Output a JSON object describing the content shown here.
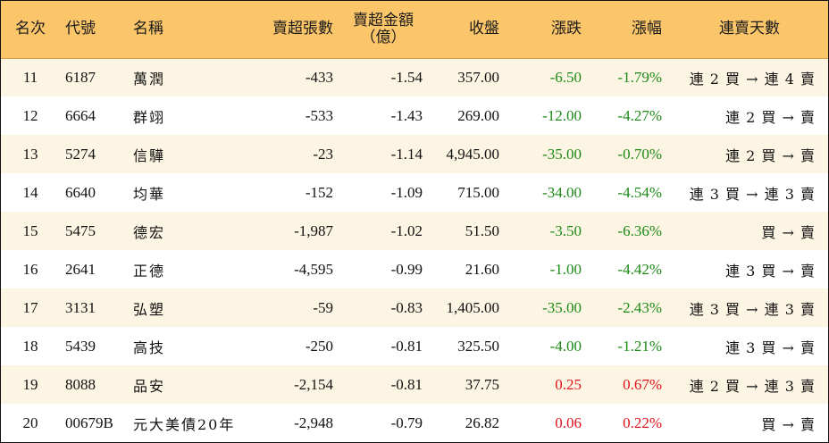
{
  "headers": {
    "rank": "名次",
    "code": "代號",
    "name": "名稱",
    "sell_lots": "賣超張數",
    "sell_amount_line1": "賣超金額",
    "sell_amount_line2": "（億）",
    "close": "收盤",
    "change": "漲跌",
    "change_pct": "漲幅",
    "streak": "連賣天數"
  },
  "rows": [
    {
      "rank": "11",
      "code": "6187",
      "name": "萬潤",
      "sell_lots": "-433",
      "sell_amount": "-1.54",
      "close": "357.00",
      "change": "-6.50",
      "change_pct": "-1.79%",
      "streak": "連 2 買 → 連 4 賣"
    },
    {
      "rank": "12",
      "code": "6664",
      "name": "群翊",
      "sell_lots": "-533",
      "sell_amount": "-1.43",
      "close": "269.00",
      "change": "-12.00",
      "change_pct": "-4.27%",
      "streak": "連 2 買 → 賣"
    },
    {
      "rank": "13",
      "code": "5274",
      "name": "信驊",
      "sell_lots": "-23",
      "sell_amount": "-1.14",
      "close": "4,945.00",
      "change": "-35.00",
      "change_pct": "-0.70%",
      "streak": "連 2 買 → 賣"
    },
    {
      "rank": "14",
      "code": "6640",
      "name": "均華",
      "sell_lots": "-152",
      "sell_amount": "-1.09",
      "close": "715.00",
      "change": "-34.00",
      "change_pct": "-4.54%",
      "streak": "連 3 買 → 連 3 賣"
    },
    {
      "rank": "15",
      "code": "5475",
      "name": "德宏",
      "sell_lots": "-1,987",
      "sell_amount": "-1.02",
      "close": "51.50",
      "change": "-3.50",
      "change_pct": "-6.36%",
      "streak": "買 → 賣"
    },
    {
      "rank": "16",
      "code": "2641",
      "name": "正德",
      "sell_lots": "-4,595",
      "sell_amount": "-0.99",
      "close": "21.60",
      "change": "-1.00",
      "change_pct": "-4.42%",
      "streak": "連 3 買 → 賣"
    },
    {
      "rank": "17",
      "code": "3131",
      "name": "弘塑",
      "sell_lots": "-59",
      "sell_amount": "-0.83",
      "close": "1,405.00",
      "change": "-35.00",
      "change_pct": "-2.43%",
      "streak": "連 3 買 → 連 3 賣"
    },
    {
      "rank": "18",
      "code": "5439",
      "name": "高技",
      "sell_lots": "-250",
      "sell_amount": "-0.81",
      "close": "325.50",
      "change": "-4.00",
      "change_pct": "-1.21%",
      "streak": "連 3 買 → 賣"
    },
    {
      "rank": "19",
      "code": "8088",
      "name": "品安",
      "sell_lots": "-2,154",
      "sell_amount": "-0.81",
      "close": "37.75",
      "change": "0.25",
      "change_pct": "0.67%",
      "streak": "連 2 買 → 連 3 賣"
    },
    {
      "rank": "20",
      "code": "00679B",
      "name": "元大美債20年",
      "sell_lots": "-2,948",
      "sell_amount": "-0.79",
      "close": "26.82",
      "change": "0.06",
      "change_pct": "0.22%",
      "streak": "買 → 賣"
    }
  ],
  "colors": {
    "header_bg": "#fbc56a",
    "row_alt_bg": "#fdf5e3",
    "negative": "#1d8a17",
    "positive": "#e0121b"
  }
}
